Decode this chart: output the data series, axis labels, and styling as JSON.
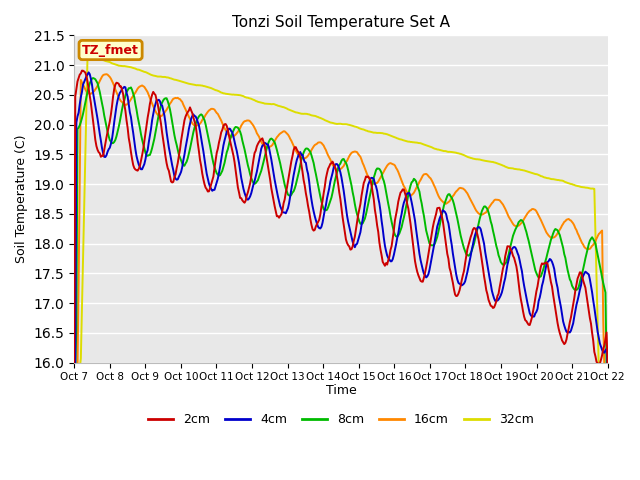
{
  "title": "Tonzi Soil Temperature Set A",
  "xlabel": "Time",
  "ylabel": "Soil Temperature (C)",
  "ylim": [
    16.0,
    21.5
  ],
  "yticks": [
    16.0,
    16.5,
    17.0,
    17.5,
    18.0,
    18.5,
    19.0,
    19.5,
    20.0,
    20.5,
    21.0,
    21.5
  ],
  "xtick_labels": [
    "Oct 7",
    "Oct 8",
    "Oct 9",
    "Oct 10",
    "Oct 11",
    "Oct 12",
    "Oct 13",
    "Oct 14",
    "Oct 15",
    "Oct 16",
    "Oct 17",
    "Oct 18",
    "Oct 19",
    "Oct 20",
    "Oct 21",
    "Oct 22"
  ],
  "colors": {
    "2cm": "#cc0000",
    "4cm": "#0000cc",
    "8cm": "#00bb00",
    "16cm": "#ff8800",
    "32cm": "#dddd00"
  },
  "legend_label": "TZ_fmet",
  "legend_bg": "#ffffcc",
  "legend_border": "#cc8800",
  "plot_bg": "#e8e8e8",
  "grid_color": "#ffffff",
  "n_days": 15,
  "num_points": 480
}
